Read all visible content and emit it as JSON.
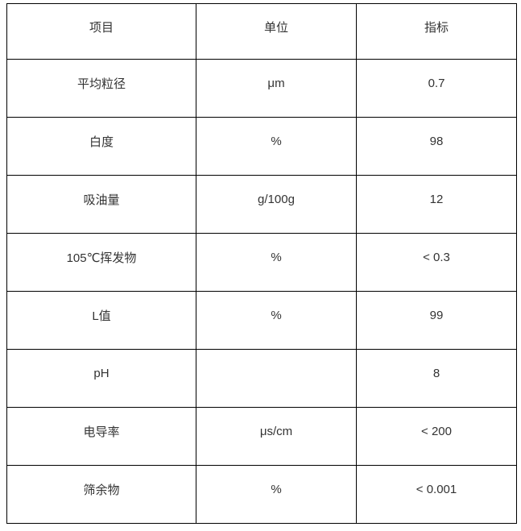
{
  "table": {
    "headers": [
      "项目",
      "单位",
      "指标"
    ],
    "rows": [
      [
        "平均粒径",
        "μm",
        "0.7"
      ],
      [
        "白度",
        "%",
        "98"
      ],
      [
        "吸油量",
        "g/100g",
        "12"
      ],
      [
        "105℃挥发物",
        "%",
        "< 0.3"
      ],
      [
        "L值",
        "%",
        "99"
      ],
      [
        "pH",
        "",
        "8"
      ],
      [
        "电导率",
        "μs/cm",
        "< 200"
      ],
      [
        "筛余物",
        "%",
        "< 0.001"
      ]
    ]
  },
  "colors": {
    "border": "#000000",
    "text": "#333333",
    "background": "#ffffff"
  }
}
